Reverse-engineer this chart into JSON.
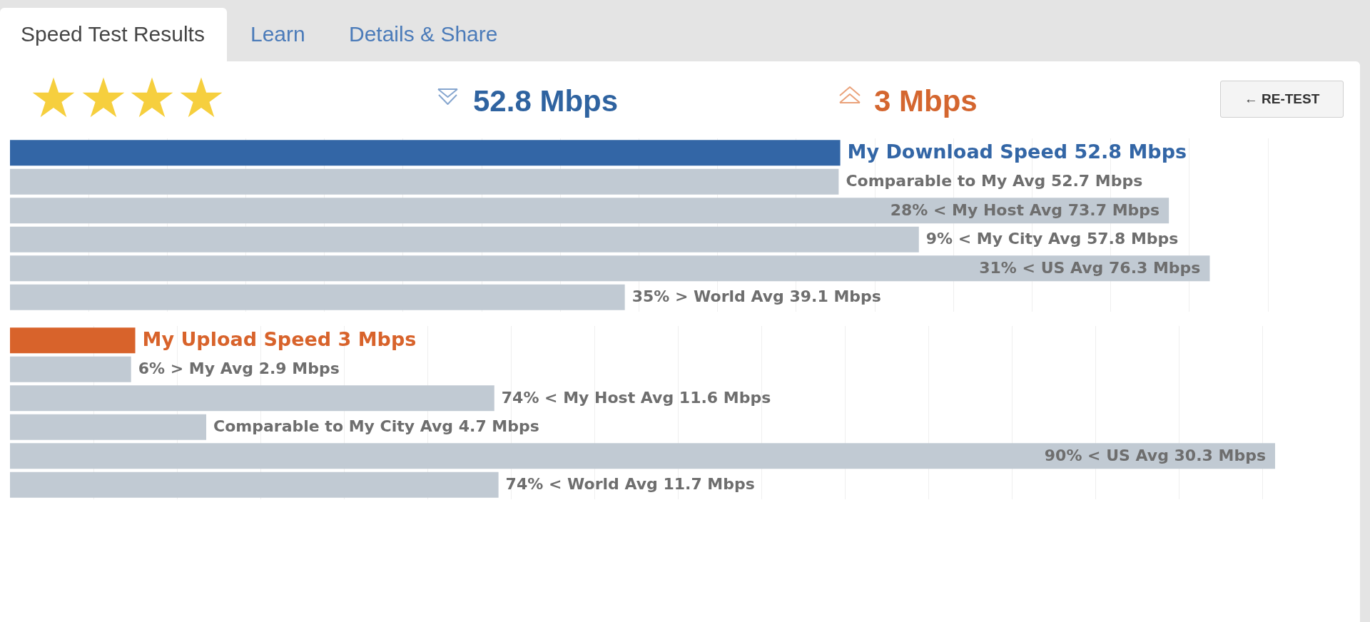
{
  "chart_data": [
    {
      "type": "other",
      "annotations": [
        "Speed Test Results",
        "Learn",
        "Details & Share",
        "52.8 Mbps",
        "3 Mbps",
        "← RE-TEST"
      ]
    },
    {
      "type": "bar",
      "orientation": "horizontal",
      "categories": [
        null,
        null,
        null,
        null,
        null,
        null
      ],
      "values": [
        52.8,
        52.7,
        73.7,
        57.8,
        76.3,
        39.1
      ],
      "colors": [
        "#3366a6",
        "#c1cad3",
        "#c1cad3",
        "#c1cad3",
        "#c1cad3",
        "#c1cad3"
      ],
      "value_labels": [
        "My Download Speed 52.8 Mbps",
        "Comparable to My Avg 52.7 Mbps",
        "28% < My Host Avg 73.7 Mbps",
        "9% < My City Avg 57.8 Mbps",
        "31% < US Avg 76.3 Mbps",
        "35% > World Avg 39.1 Mbps"
      ],
      "xlim": [
        0,
        80
      ],
      "xticks": [
        {
          "value": 5,
          "label": null
        },
        {
          "value": 10,
          "label": null
        },
        {
          "value": 15,
          "label": null
        },
        {
          "value": 20,
          "label": null
        },
        {
          "value": 25,
          "label": null
        },
        {
          "value": 30,
          "label": null
        },
        {
          "value": 35,
          "label": null
        },
        {
          "value": 40,
          "label": null
        },
        {
          "value": 45,
          "label": null
        },
        {
          "value": 50,
          "label": null
        },
        {
          "value": 55,
          "label": null
        },
        {
          "value": 60,
          "label": null
        },
        {
          "value": 65,
          "label": null
        },
        {
          "value": 70,
          "label": null
        },
        {
          "value": 75,
          "label": null
        },
        {
          "value": 80,
          "label": null
        }
      ],
      "grid": "x",
      "tick_labels": false
    },
    {
      "type": "bar",
      "orientation": "horizontal",
      "categories": [
        null,
        null,
        null,
        null,
        null,
        null
      ],
      "values": [
        3,
        2.9,
        11.6,
        4.7,
        30.3,
        11.7
      ],
      "colors": [
        "#d8632b",
        "#c1cad3",
        "#c1cad3",
        "#c1cad3",
        "#c1cad3",
        "#c1cad3"
      ],
      "value_labels": [
        "My Upload Speed 3 Mbps",
        "6% > My Avg 2.9 Mbps",
        "74% < My Host Avg 11.6 Mbps",
        "Comparable to My City Avg 4.7 Mbps",
        "90% < US Avg 30.3 Mbps",
        "74% < World Avg 11.7 Mbps"
      ],
      "xticks": [
        {
          "value": 2,
          "label": null
        },
        {
          "value": 4,
          "label": null
        },
        {
          "value": 6,
          "label": null
        },
        {
          "value": 8,
          "label": null
        },
        {
          "value": 10,
          "label": null
        },
        {
          "value": 12,
          "label": null
        },
        {
          "value": 14,
          "label": null
        },
        {
          "value": 16,
          "label": null
        },
        {
          "value": 18,
          "label": null
        },
        {
          "value": 20,
          "label": null
        },
        {
          "value": 22,
          "label": null
        },
        {
          "value": 24,
          "label": null
        },
        {
          "value": 26,
          "label": null
        },
        {
          "value": 28,
          "label": null
        },
        {
          "value": 30,
          "label": null
        }
      ],
      "grid": "x",
      "tick_labels": false
    }
  ]
}
